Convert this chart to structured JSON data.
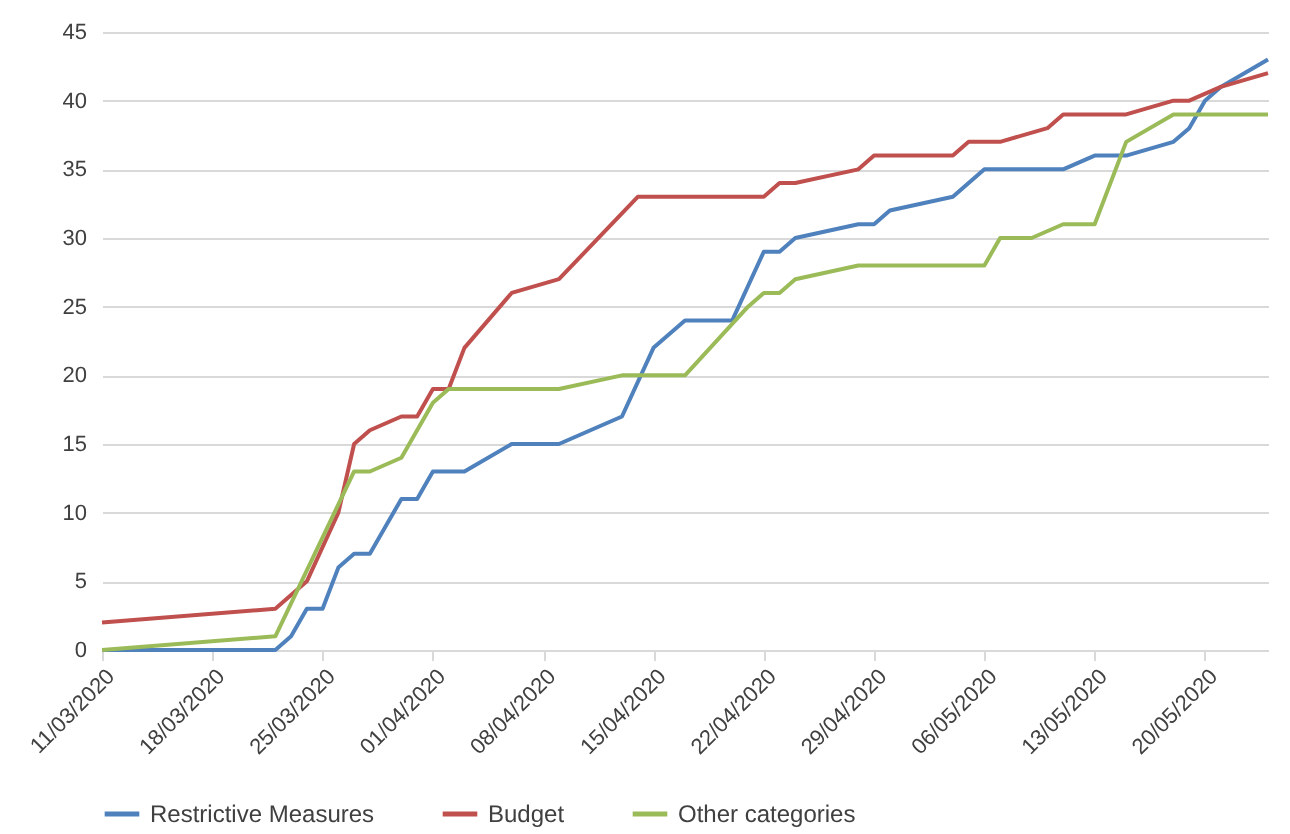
{
  "chart_data": {
    "type": "line",
    "grid": "y",
    "legend": "bottom",
    "xlim": [
      "2020-03-11",
      "2020-05-24"
    ],
    "ylim": [
      0,
      45
    ],
    "yticks": [
      0,
      5,
      10,
      15,
      20,
      25,
      30,
      35,
      40,
      45
    ],
    "xticks": [
      {
        "value": "2020-03-11",
        "label": "11/03/2020"
      },
      {
        "value": "2020-03-18",
        "label": "18/03/2020"
      },
      {
        "value": "2020-03-25",
        "label": "25/03/2020"
      },
      {
        "value": "2020-04-01",
        "label": "01/04/2020"
      },
      {
        "value": "2020-04-08",
        "label": "08/04/2020"
      },
      {
        "value": "2020-04-15",
        "label": "15/04/2020"
      },
      {
        "value": "2020-04-22",
        "label": "22/04/2020"
      },
      {
        "value": "2020-04-29",
        "label": "29/04/2020"
      },
      {
        "value": "2020-05-06",
        "label": "06/05/2020"
      },
      {
        "value": "2020-05-13",
        "label": "13/05/2020"
      },
      {
        "value": "2020-05-20",
        "label": "20/05/2020"
      }
    ],
    "series": [
      {
        "name": "Restrictive Measures",
        "color": "#4f81bd",
        "x": [
          "2020-03-11",
          "2020-03-22",
          "2020-03-23",
          "2020-03-24",
          "2020-03-25",
          "2020-03-26",
          "2020-03-27",
          "2020-03-28",
          "2020-03-30",
          "2020-03-31",
          "2020-04-01",
          "2020-04-03",
          "2020-04-06",
          "2020-04-09",
          "2020-04-13",
          "2020-04-15",
          "2020-04-17",
          "2020-04-20",
          "2020-04-22",
          "2020-04-23",
          "2020-04-24",
          "2020-04-28",
          "2020-04-29",
          "2020-04-30",
          "2020-05-04",
          "2020-05-05",
          "2020-05-06",
          "2020-05-11",
          "2020-05-13",
          "2020-05-15",
          "2020-05-18",
          "2020-05-19",
          "2020-05-20",
          "2020-05-21",
          "2020-05-24"
        ],
        "values": [
          0,
          0,
          1,
          3,
          3,
          6,
          7,
          7,
          11,
          11,
          13,
          13,
          15,
          15,
          17,
          22,
          24,
          24,
          29,
          29,
          30,
          31,
          31,
          32,
          33,
          34,
          35,
          35,
          36,
          36,
          37,
          38,
          40,
          41,
          43
        ]
      },
      {
        "name": "Budget",
        "color": "#c0504d",
        "x": [
          "2020-03-11",
          "2020-03-22",
          "2020-03-24",
          "2020-03-26",
          "2020-03-27",
          "2020-03-28",
          "2020-03-30",
          "2020-03-31",
          "2020-04-01",
          "2020-04-02",
          "2020-04-03",
          "2020-04-06",
          "2020-04-09",
          "2020-04-14",
          "2020-04-22",
          "2020-04-23",
          "2020-04-24",
          "2020-04-28",
          "2020-04-29",
          "2020-05-04",
          "2020-05-05",
          "2020-05-07",
          "2020-05-10",
          "2020-05-11",
          "2020-05-15",
          "2020-05-18",
          "2020-05-19",
          "2020-05-21",
          "2020-05-24"
        ],
        "values": [
          2,
          3,
          5,
          10,
          15,
          16,
          17,
          17,
          19,
          19,
          22,
          26,
          27,
          33,
          33,
          34,
          34,
          35,
          36,
          36,
          37,
          37,
          38,
          39,
          39,
          40,
          40,
          41,
          42
        ]
      },
      {
        "name": "Other categories",
        "color": "#9bbb59",
        "x": [
          "2020-03-11",
          "2020-03-22",
          "2020-03-27",
          "2020-03-28",
          "2020-03-30",
          "2020-04-01",
          "2020-04-02",
          "2020-04-09",
          "2020-04-13",
          "2020-04-17",
          "2020-04-21",
          "2020-04-22",
          "2020-04-23",
          "2020-04-24",
          "2020-04-28",
          "2020-05-06",
          "2020-05-07",
          "2020-05-09",
          "2020-05-11",
          "2020-05-13",
          "2020-05-15",
          "2020-05-18",
          "2020-05-24"
        ],
        "values": [
          0,
          1,
          13,
          13,
          14,
          18,
          19,
          19,
          20,
          20,
          25,
          26,
          26,
          27,
          28,
          28,
          30,
          30,
          31,
          31,
          37,
          39,
          39
        ]
      }
    ]
  }
}
